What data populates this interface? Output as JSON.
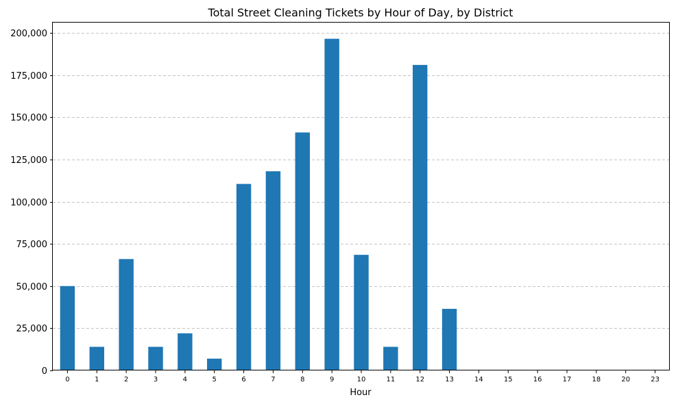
{
  "chart_data": {
    "type": "bar",
    "title": "Total Street Cleaning Tickets by Hour of Day, by District",
    "xlabel": "Hour",
    "ylabel": "",
    "categories": [
      "0",
      "1",
      "2",
      "3",
      "4",
      "5",
      "6",
      "7",
      "8",
      "9",
      "10",
      "11",
      "12",
      "13",
      "14",
      "15",
      "16",
      "17",
      "18",
      "20",
      "23"
    ],
    "values": [
      50000,
      14000,
      66000,
      14000,
      22000,
      7000,
      110500,
      118000,
      141000,
      196500,
      68500,
      14000,
      181000,
      36500,
      0,
      0,
      0,
      0,
      0,
      0,
      0
    ],
    "ylim": [
      0,
      206000
    ],
    "yticks": [
      0,
      25000,
      50000,
      75000,
      100000,
      125000,
      150000,
      175000,
      200000
    ],
    "ytick_labels": [
      "0",
      "25,000",
      "50,000",
      "75,000",
      "100,000",
      "125,000",
      "150,000",
      "175,000",
      "200,000"
    ],
    "grid": "y",
    "bar_color": "#1f77b4"
  }
}
